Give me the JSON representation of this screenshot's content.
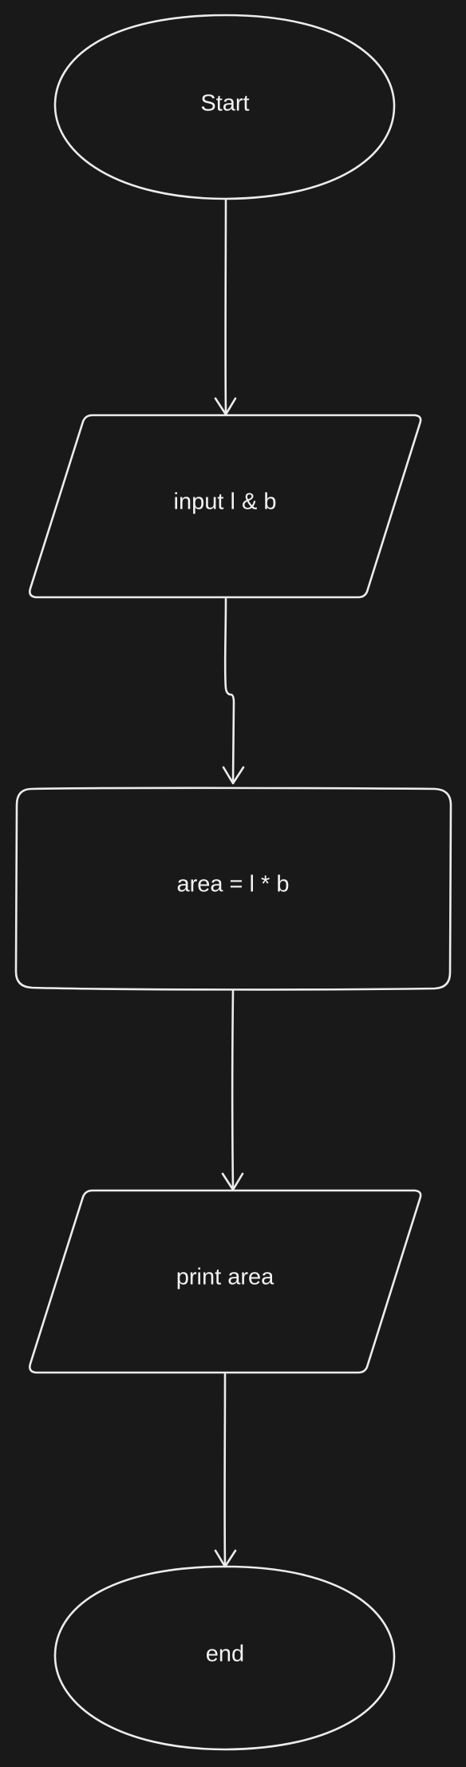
{
  "diagram": {
    "type": "flowchart",
    "colors": {
      "background": "#191919",
      "stroke": "#ececec",
      "text": "#f2f2f2"
    },
    "nodes": [
      {
        "id": "start",
        "kind": "terminator",
        "label": "Start"
      },
      {
        "id": "input",
        "kind": "io",
        "label": "input l & b"
      },
      {
        "id": "process",
        "kind": "process",
        "label": "area = l * b"
      },
      {
        "id": "output",
        "kind": "io",
        "label": "print area"
      },
      {
        "id": "end",
        "kind": "terminator",
        "label": "end"
      }
    ],
    "edges": [
      {
        "from": "start",
        "to": "input"
      },
      {
        "from": "input",
        "to": "process"
      },
      {
        "from": "process",
        "to": "output"
      },
      {
        "from": "output",
        "to": "end"
      }
    ]
  }
}
